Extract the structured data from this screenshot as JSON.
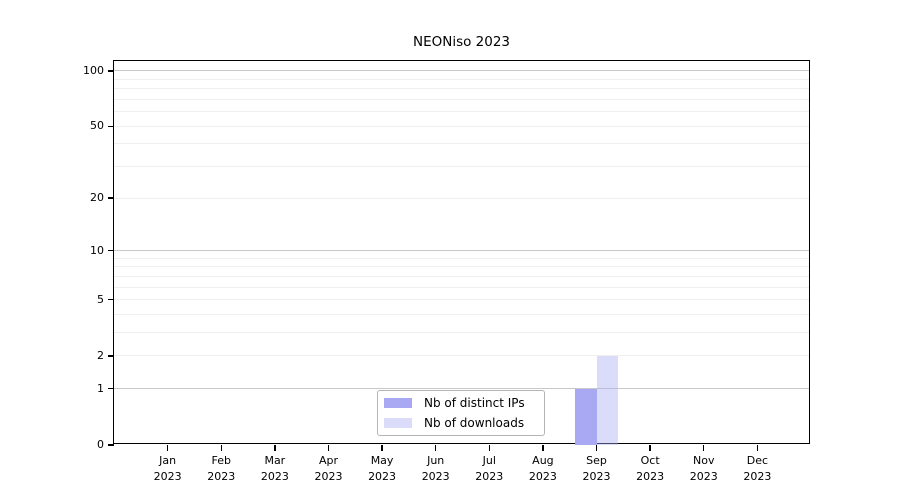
{
  "chart_data": {
    "type": "bar",
    "title": "NEONiso 2023",
    "categories": [
      "Jan",
      "Feb",
      "Mar",
      "Apr",
      "May",
      "Jun",
      "Jul",
      "Aug",
      "Sep",
      "Oct",
      "Nov",
      "Dec"
    ],
    "category_year": "2023",
    "series": [
      {
        "name": "Nb of distinct IPs",
        "color": "#a9a9f3",
        "alpha": 1,
        "values": [
          0,
          0,
          0,
          0,
          0,
          0,
          0,
          0,
          1,
          0,
          0,
          0
        ]
      },
      {
        "name": "Nb of downloads",
        "color": "#a9a9f3",
        "alpha": 0.42,
        "values": [
          0,
          0,
          0,
          0,
          0,
          0,
          0,
          0,
          2,
          0,
          0,
          0
        ]
      }
    ],
    "xlabel": "",
    "ylabel": "",
    "yscale": "log1p",
    "ylim": [
      0,
      113
    ],
    "yticks": [
      0,
      1,
      2,
      5,
      10,
      20,
      50,
      100
    ],
    "gridlines": {
      "major": [
        1,
        10,
        100
      ],
      "minor": [
        2,
        3,
        4,
        5,
        6,
        7,
        8,
        9,
        20,
        30,
        40,
        50,
        60,
        70,
        80,
        90
      ]
    },
    "legend_position": "bottom-center",
    "grid": true
  },
  "colors": {
    "frame": "#000000",
    "major_grid": "#c8c8c8",
    "minor_grid": "#efefef",
    "legend_border": "#b4b4b4",
    "text": "#000000"
  }
}
